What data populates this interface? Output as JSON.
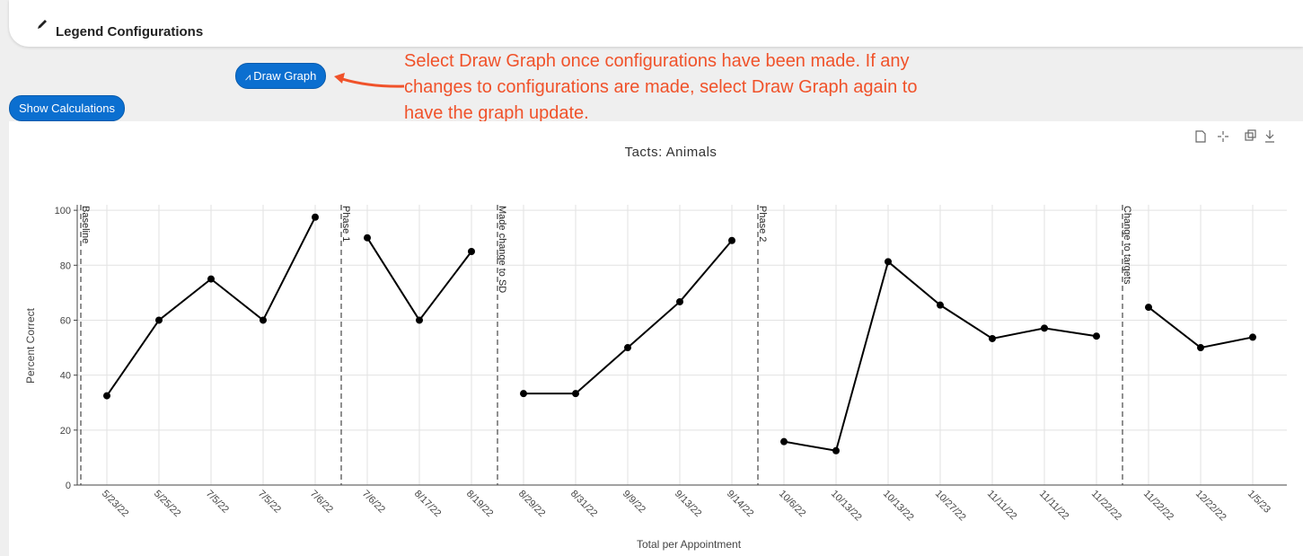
{
  "ui": {
    "legend_configurations": "Legend Configurations",
    "draw_graph": "Draw Graph",
    "show_calculations": "Show Calculations",
    "annotation": [
      "Select Draw Graph once configurations have been made. If any",
      "changes to configurations are made, select Draw Graph again to",
      "have the graph update."
    ]
  },
  "chart_data": {
    "type": "line",
    "title": "Tacts: Animals",
    "x_label": "Total per Appointment",
    "y_label": "Percent Correct",
    "categories": [
      "5/23/22",
      "5/25/22",
      "7/5/22",
      "7/5/22",
      "7/6/22",
      "7/6/22",
      "8/17/22",
      "8/19/22",
      "8/29/22",
      "8/31/22",
      "9/9/22",
      "9/13/22",
      "9/14/22",
      "10/6/22",
      "10/13/22",
      "10/13/22",
      "10/27/22",
      "11/11/22",
      "11/11/22",
      "11/22/22",
      "11/22/22",
      "12/22/22",
      "1/5/23"
    ],
    "series": [
      {
        "name": "Baseline",
        "color": "#000000",
        "values": [
          32.5,
          60,
          75,
          60,
          97.5,
          null,
          null,
          null,
          null,
          null,
          null,
          null,
          null,
          null,
          null,
          null,
          null,
          null,
          null,
          null,
          null,
          null,
          null
        ]
      },
      {
        "name": "Phase 1",
        "color": "#000000",
        "values": [
          null,
          null,
          null,
          null,
          null,
          90,
          60,
          85,
          null,
          null,
          null,
          null,
          null,
          null,
          null,
          null,
          null,
          null,
          null,
          null,
          null,
          null,
          null
        ]
      },
      {
        "name": "Made change to SD",
        "color": "#000000",
        "values": [
          null,
          null,
          null,
          null,
          null,
          null,
          null,
          null,
          33.3,
          33.3,
          50,
          66.7,
          89,
          null,
          null,
          null,
          null,
          null,
          null,
          null,
          null,
          null,
          null
        ]
      },
      {
        "name": "Phase 2",
        "color": "#000000",
        "values": [
          null,
          null,
          null,
          null,
          null,
          null,
          null,
          null,
          null,
          null,
          null,
          null,
          null,
          15.8,
          12.5,
          81.3,
          65.5,
          53.3,
          57.1,
          54.2,
          null,
          null,
          null
        ]
      },
      {
        "name": "Change to targets",
        "color": "#000000",
        "values": [
          null,
          null,
          null,
          null,
          null,
          null,
          null,
          null,
          null,
          null,
          null,
          null,
          null,
          null,
          null,
          null,
          null,
          null,
          null,
          null,
          64.7,
          50,
          53.8
        ]
      }
    ],
    "ylim": [
      0,
      102
    ],
    "yticks": [
      0,
      20,
      40,
      60,
      80,
      100
    ],
    "grid": true
  }
}
